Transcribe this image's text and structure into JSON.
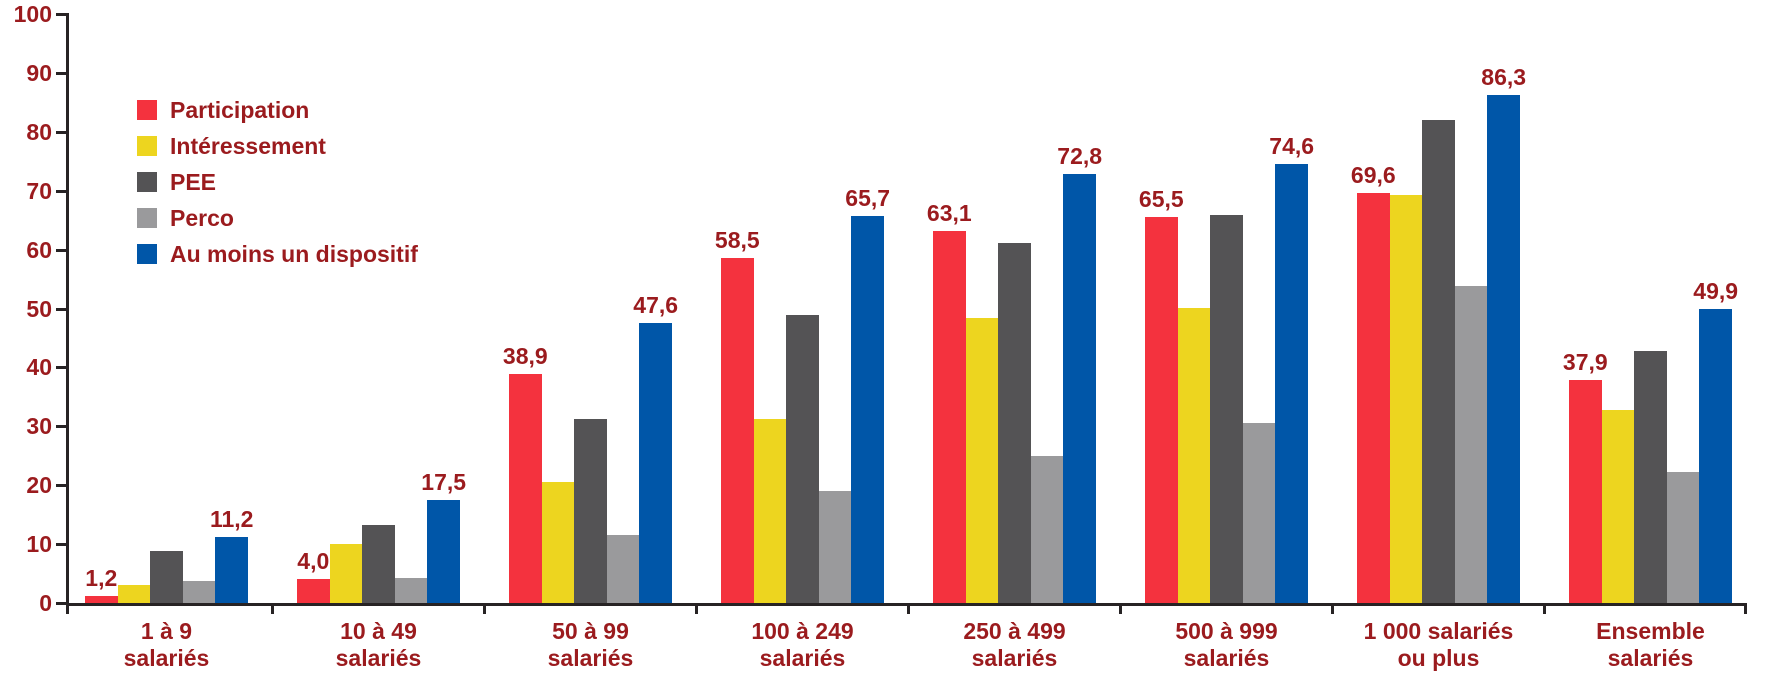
{
  "chart_data": {
    "type": "bar",
    "title": "",
    "xlabel": "",
    "ylabel": "",
    "ylim": [
      0,
      100
    ],
    "y_ticks": [
      0,
      10,
      20,
      30,
      40,
      50,
      60,
      70,
      80,
      90,
      100
    ],
    "grid": false,
    "legend_position": "top-left",
    "categories": [
      [
        "1 à 9",
        "salariés"
      ],
      [
        "10 à 49",
        "salariés"
      ],
      [
        "50 à 99",
        "salariés"
      ],
      [
        "100 à 249",
        "salariés"
      ],
      [
        "250 à 499",
        "salariés"
      ],
      [
        "500 à 999",
        "salariés"
      ],
      [
        "1 000 salariés",
        "ou plus"
      ],
      [
        "Ensemble",
        "salariés"
      ]
    ],
    "series": [
      {
        "name": "Participation",
        "color": "#F4323E",
        "values": [
          1.2,
          4.0,
          38.9,
          58.5,
          63.1,
          65.5,
          69.6,
          37.9
        ],
        "value_labels": [
          "1,2",
          "4,0",
          "38,9",
          "58,5",
          "63,1",
          "65,5",
          "69,6",
          "37,9"
        ]
      },
      {
        "name": "Intéressement",
        "color": "#EDD51F",
        "values": [
          3.1,
          10.0,
          20.5,
          31.3,
          48.4,
          50.1,
          69.2,
          32.8
        ],
        "value_labels": null
      },
      {
        "name": "PEE",
        "color": "#545355",
        "values": [
          8.9,
          13.3,
          31.2,
          48.9,
          61.2,
          65.8,
          82.0,
          42.7
        ],
        "value_labels": null
      },
      {
        "name": "Perco",
        "color": "#9A9A9C",
        "values": [
          3.7,
          4.3,
          11.6,
          19.0,
          25.0,
          30.5,
          53.8,
          22.2
        ],
        "value_labels": null
      },
      {
        "name": "Au moins un dispositif",
        "color": "#0056A8",
        "values": [
          11.2,
          17.5,
          47.6,
          65.7,
          72.8,
          74.6,
          86.3,
          49.9
        ],
        "value_labels": [
          "11,2",
          "17,5",
          "47,6",
          "65,7",
          "72,8",
          "74,6",
          "86,3",
          "49,9"
        ]
      }
    ],
    "colors": {
      "text": "#9B1B1E",
      "axis": "#272324"
    }
  }
}
